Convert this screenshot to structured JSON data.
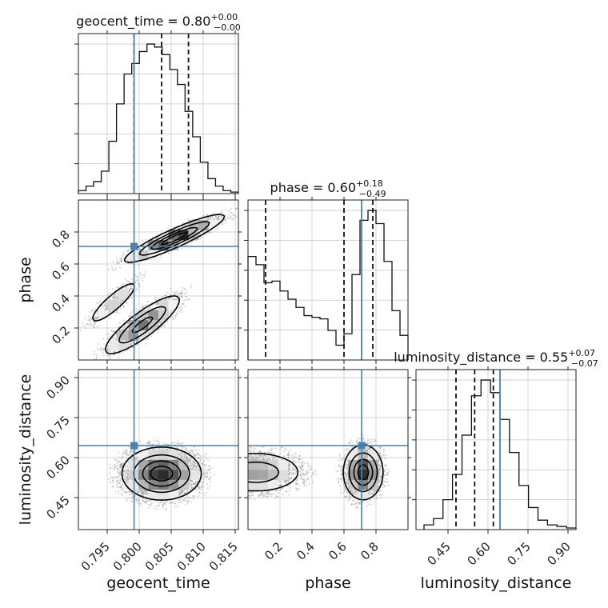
{
  "chart_data": {
    "type": "corner",
    "parameters": [
      {
        "name": "geocent_time",
        "range": [
          0.7905,
          0.8155
        ],
        "ticks": [
          0.795,
          0.8,
          0.805,
          0.81,
          0.815
        ],
        "tick_labels": [
          "0.795",
          "0.800",
          "0.805",
          "0.810",
          "0.815"
        ],
        "truth": 0.7992,
        "quantiles": [
          0.7992,
          0.8035,
          0.8077
        ],
        "title": {
          "main": "geocent_time = 0.80",
          "plus": "+0.00",
          "minus": "−0.00"
        },
        "hist_edges": [
          0.7905,
          0.8155
        ],
        "hist": [
          0.02,
          0.05,
          0.08,
          0.15,
          0.35,
          0.6,
          0.8,
          0.87,
          0.95,
          1.0,
          0.98,
          0.93,
          0.83,
          0.73,
          0.55,
          0.38,
          0.21,
          0.1,
          0.05,
          0.02,
          0.01
        ]
      },
      {
        "name": "phase",
        "range": [
          0.0,
          1.0
        ],
        "ticks": [
          0.2,
          0.4,
          0.6,
          0.8
        ],
        "tick_labels": [
          "0.2",
          "0.4",
          "0.6",
          "0.8"
        ],
        "truth": 0.71,
        "quantiles": [
          0.11,
          0.6,
          0.78
        ],
        "title": {
          "main": "phase = 0.60",
          "plus": "+0.18",
          "minus": "−0.49"
        },
        "hist_edges": [
          0.0,
          1.0
        ],
        "hist": [
          0.63,
          0.58,
          0.47,
          0.48,
          0.42,
          0.37,
          0.32,
          0.27,
          0.26,
          0.25,
          0.18,
          0.09,
          0.16,
          0.52,
          0.85,
          0.91,
          0.83,
          0.6,
          0.3,
          0.15
        ]
      },
      {
        "name": "luminosity_distance",
        "range": [
          0.33,
          0.93
        ],
        "ticks": [
          0.45,
          0.6,
          0.75,
          0.9
        ],
        "tick_labels": [
          "0.45",
          "0.60",
          "0.75",
          "0.90"
        ],
        "truth": 0.645,
        "quantiles": [
          0.48,
          0.55,
          0.62
        ],
        "title": {
          "main": "luminosity_distance = 0.55",
          "plus": "+0.07",
          "minus": "−0.07"
        },
        "hist_edges": [
          0.36,
          0.93
        ],
        "hist": [
          0.03,
          0.07,
          0.19,
          0.35,
          0.6,
          0.85,
          0.95,
          0.87,
          0.7,
          0.49,
          0.28,
          0.14,
          0.06,
          0.03,
          0.02,
          0.01
        ]
      }
    ],
    "density_panels": [
      {
        "x": "geocent_time",
        "y": "phase",
        "modes": [
          {
            "center": [
              0.8055,
              0.76
            ],
            "sigma_along": 0.0038,
            "sigma_across": 0.03,
            "slope_dy_dx": 18.0,
            "weight": 1.0
          },
          {
            "center": [
              0.8005,
              0.22
            ],
            "sigma_along": 0.003,
            "sigma_across": 0.05,
            "slope_dy_dx": 30.0,
            "weight": 0.72
          },
          {
            "center": [
              0.796,
              0.36
            ],
            "sigma_along": 0.0022,
            "sigma_across": 0.04,
            "slope_dy_dx": 35.0,
            "weight": 0.35
          }
        ]
      },
      {
        "x": "geocent_time",
        "y": "luminosity_distance",
        "modes": [
          {
            "center": [
              0.8035,
              0.54
            ],
            "sigma_x": 0.003,
            "sigma_y": 0.048,
            "weight": 1.0
          }
        ]
      },
      {
        "x": "phase",
        "y": "luminosity_distance",
        "modes": [
          {
            "center": [
              0.72,
              0.545
            ],
            "sigma_x": 0.06,
            "sigma_y": 0.05,
            "weight": 1.0
          },
          {
            "center": [
              0.05,
              0.545
            ],
            "sigma_x": 0.15,
            "sigma_y": 0.04,
            "weight": 0.55
          }
        ]
      }
    ],
    "truth_color": "#4682b4",
    "quantile_style": "dashed",
    "grid": true
  }
}
